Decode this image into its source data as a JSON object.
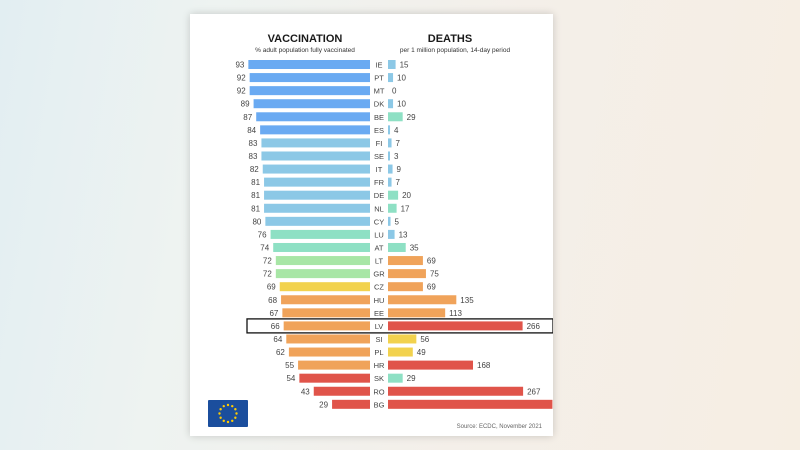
{
  "chart_data": {
    "type": "bar",
    "panels": [
      {
        "title": "VACCINATION",
        "subtitle": "% adult population fully vaccinated"
      },
      {
        "title": "DEATHS",
        "subtitle": "per 1 million population, 14-day period"
      }
    ],
    "categories": [
      "IE",
      "PT",
      "MT",
      "DK",
      "BE",
      "ES",
      "FI",
      "SE",
      "IT",
      "FR",
      "DE",
      "NL",
      "CY",
      "LU",
      "AT",
      "LT",
      "GR",
      "CZ",
      "HU",
      "EE",
      "LV",
      "SI",
      "PL",
      "HR",
      "SK",
      "RO",
      "BG"
    ],
    "series": [
      {
        "name": "VACCINATION",
        "values": [
          93,
          92,
          92,
          89,
          87,
          84,
          83,
          83,
          82,
          81,
          81,
          81,
          80,
          76,
          74,
          72,
          72,
          69,
          68,
          67,
          66,
          64,
          62,
          55,
          54,
          43,
          29
        ]
      },
      {
        "name": "DEATHS",
        "values": [
          15,
          10,
          0,
          10,
          29,
          4,
          7,
          3,
          9,
          7,
          20,
          17,
          5,
          13,
          35,
          69,
          75,
          69,
          135,
          113,
          266,
          56,
          49,
          168,
          29,
          267,
          325
        ]
      }
    ],
    "highlight": "LV",
    "source": "Source: ECDC, November 2021",
    "colors": {
      "high": "#6aaaf2",
      "upper": "#8cc8e6",
      "mid": "#8ee0c4",
      "low_green": "#a8e6a6",
      "yellow": "#f2d24e",
      "orange": "#f0a35a",
      "red": "#e0544a",
      "eu_blue": "#1b4e9d",
      "eu_star": "#ffcc00"
    }
  }
}
